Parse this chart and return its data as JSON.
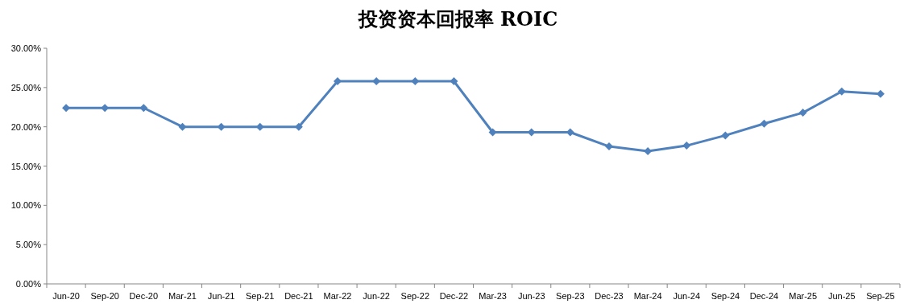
{
  "chart_data": {
    "type": "line",
    "title": "投资资本回报率 ROIC",
    "categories": [
      "Jun-20",
      "Sep-20",
      "Dec-20",
      "Mar-21",
      "Jun-21",
      "Sep-21",
      "Dec-21",
      "Mar-22",
      "Jun-22",
      "Sep-22",
      "Dec-22",
      "Mar-23",
      "Jun-23",
      "Sep-23",
      "Dec-23",
      "Mar-24",
      "Jun-24",
      "Sep-24",
      "Dec-24",
      "Mar-25",
      "Jun-25",
      "Sep-25"
    ],
    "series": [
      {
        "color": "#4f81bd",
        "values": [
          22.4,
          22.4,
          22.4,
          20.0,
          20.0,
          20.0,
          20.0,
          25.8,
          25.8,
          25.8,
          25.8,
          19.3,
          19.3,
          19.3,
          17.5,
          16.9,
          17.6,
          18.9,
          20.4,
          21.8,
          24.5,
          24.2
        ]
      }
    ],
    "ylim": [
      0,
      30
    ],
    "yticks": [
      {
        "value": 0,
        "label": "0.00%"
      },
      {
        "value": 5,
        "label": "5.00%"
      },
      {
        "value": 10,
        "label": "10.00%"
      },
      {
        "value": 15,
        "label": "15.00%"
      },
      {
        "value": 20,
        "label": "20.00%"
      },
      {
        "value": 25,
        "label": "25.00%"
      },
      {
        "value": 30,
        "label": "30.00%"
      }
    ],
    "marker": "diamond",
    "grid": false
  }
}
